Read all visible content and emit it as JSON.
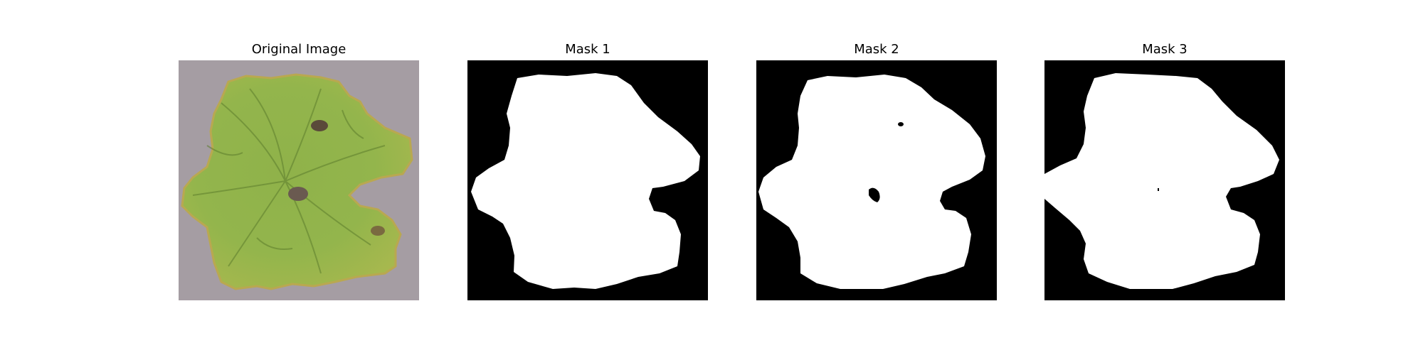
{
  "panels": [
    {
      "title": "Original Image",
      "kind": "photo",
      "subject": "leaf"
    },
    {
      "title": "Mask 1",
      "kind": "mask"
    },
    {
      "title": "Mask 2",
      "kind": "mask"
    },
    {
      "title": "Mask 3",
      "kind": "mask"
    }
  ],
  "colors": {
    "background": "#ffffff",
    "mask_background": "#000000",
    "mask_foreground": "#ffffff",
    "photo_background": "#a59da3",
    "leaf_light": "#a4c64e",
    "leaf_mid": "#8fb24a",
    "leaf_dark": "#5d7d2d",
    "leaf_edge": "#c7b35a"
  }
}
